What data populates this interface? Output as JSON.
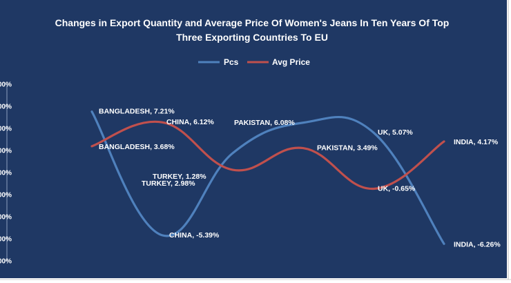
{
  "chart_data": {
    "type": "line",
    "title": "Changes in Export Quantity and Average Price  Of Women's Jeans In Ten Years  Of Top Three Exporting Countries To EU",
    "title_lines": [
      "Changes in Export Quantity and Average Price  Of Women's Jeans In Ten Years  Of Top",
      "Three Exporting Countries To EU"
    ],
    "categories": [
      "BANGLADESH",
      "CHINA",
      "TURKEY",
      "PAKISTAN",
      "UK",
      "INDIA"
    ],
    "series": [
      {
        "name": "Pcs",
        "color": "#4f81bd",
        "values": [
          7.21,
          -5.39,
          2.98,
          6.08,
          5.07,
          -6.26
        ],
        "labels": [
          "BANGLADESH, 7.21%",
          "CHINA, -5.39%",
          "TURKEY, 2.98%",
          "PAKISTAN, 6.08%",
          "UK, 5.07%",
          "INDIA, -6.26%"
        ]
      },
      {
        "name": "Avg Price",
        "color": "#c0504d",
        "values": [
          3.68,
          6.12,
          1.28,
          3.49,
          -0.65,
          4.17
        ],
        "labels": [
          "BANGLADESH, 3.68%",
          "CHINA, 6.12%",
          "TURKEY, 1.28%",
          "PAKISTAN, 3.49%",
          "UK, -0.65%",
          "INDIA, 4.17%"
        ]
      }
    ],
    "y_ticks": [
      "00%",
      "00%",
      "00%",
      "00%",
      "00%",
      "00%",
      "00%",
      "00%",
      "00%"
    ],
    "ylim": [
      -8,
      10
    ],
    "grid": false,
    "legend_position": "top",
    "background_color": "#1f3864",
    "xlabel": "",
    "ylabel": ""
  }
}
